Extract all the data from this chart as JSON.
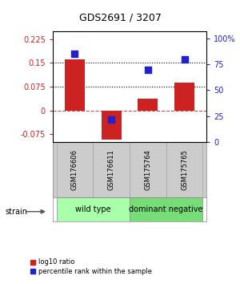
{
  "title": "GDS2691 / 3207",
  "samples": [
    "GSM176606",
    "GSM176611",
    "GSM175764",
    "GSM175765"
  ],
  "log10_ratio": [
    0.162,
    -0.092,
    0.038,
    0.088
  ],
  "percentile_rank": [
    85,
    22,
    70,
    80
  ],
  "groups": [
    {
      "label": "wild type",
      "samples": [
        0,
        1
      ],
      "color": "#aaffaa"
    },
    {
      "label": "dominant negative",
      "samples": [
        2,
        3
      ],
      "color": "#77dd77"
    }
  ],
  "strain_label": "strain",
  "ylim_left": [
    -0.1,
    0.25
  ],
  "ylim_right": [
    0,
    107
  ],
  "yticks_left": [
    -0.075,
    0,
    0.075,
    0.15,
    0.225
  ],
  "yticks_right": [
    0,
    25,
    50,
    75,
    100
  ],
  "yticklabels_right": [
    "0",
    "25",
    "50",
    "75",
    "100%"
  ],
  "hlines": [
    0.075,
    0.15
  ],
  "bar_color": "#cc2222",
  "dot_color": "#2222cc",
  "bar_width": 0.55,
  "dot_size": 30,
  "background_color": "#ffffff"
}
